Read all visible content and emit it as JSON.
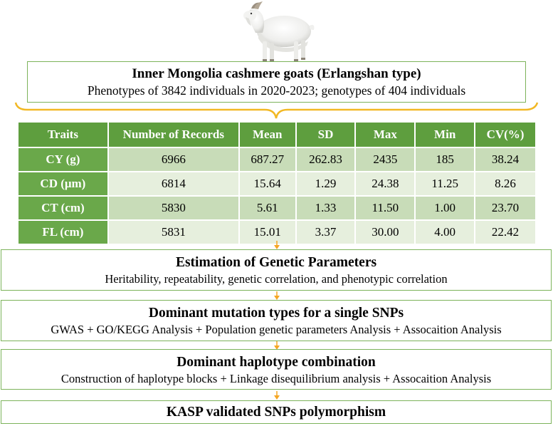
{
  "header": {
    "title": "Inner Mongolia cashmere goats (Erlangshan type)",
    "subtitle": "Phenotypes of 3842 individuals in 2020-2023; genotypes of 404 individuals"
  },
  "table": {
    "columns": [
      "Traits",
      "Number of Records",
      "Mean",
      "SD",
      "Max",
      "Min",
      "CV(%)"
    ],
    "rows": [
      [
        "CY (g)",
        "6966",
        "687.27",
        "262.83",
        "2435",
        "185",
        "38.24"
      ],
      [
        "CD (μm)",
        "6814",
        "15.64",
        "1.29",
        "24.38",
        "11.25",
        "8.26"
      ],
      [
        "CT (cm)",
        "5830",
        "5.61",
        "1.33",
        "11.50",
        "1.00",
        "23.70"
      ],
      [
        "FL (cm)",
        "5831",
        "15.01",
        "3.37",
        "30.00",
        "4.00",
        "22.42"
      ]
    ]
  },
  "steps": [
    {
      "title": "Estimation of Genetic Parameters",
      "detail": "Heritability, repeatability, genetic correlation, and phenotypic correlation"
    },
    {
      "title": "Dominant mutation types for a single SNPs",
      "detail": "GWAS + GO/KEGG Analysis + Population genetic parameters Analysis + Assocaition Analysis"
    },
    {
      "title": "Dominant haplotype combination",
      "detail": "Construction of haplotype blocks + Linkage disequilibrium analysis + Assocaition Analysis"
    },
    {
      "title": "KASP validated SNPs polymorphism",
      "detail": ""
    }
  ],
  "colors": {
    "header_green": "#5e9e3e",
    "row_dark": "#c8dcb8",
    "row_light": "#e6efdd",
    "border_green": "#7cb35a",
    "brace_gold": "#f2b824",
    "arrow_orange": "#f5a623"
  },
  "icons": {
    "goat": "goat-illustration"
  }
}
